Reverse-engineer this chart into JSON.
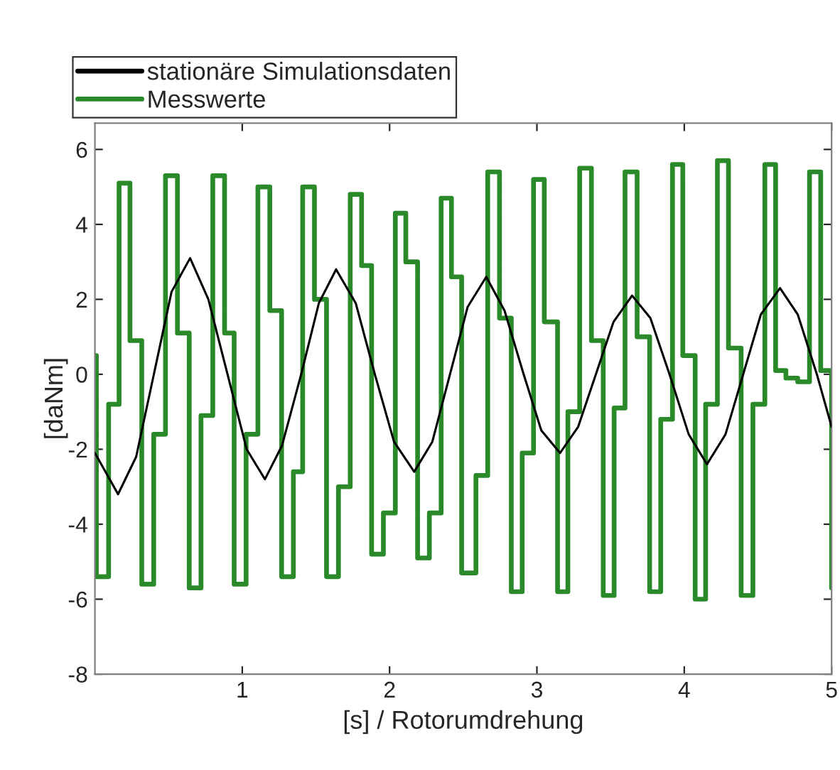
{
  "chart_data": {
    "type": "line",
    "xlabel": "[s] / Rotorumdrehung",
    "ylabel": "[daNm]",
    "xlim": [
      0,
      5
    ],
    "ylim": [
      -8,
      6.7
    ],
    "xticks": [
      1,
      2,
      3,
      4,
      5
    ],
    "yticks": [
      -8,
      -6,
      -4,
      -2,
      0,
      2,
      4,
      6
    ],
    "grid": false,
    "legend": "top left",
    "marker": "none",
    "line_style": "solid",
    "series": [
      {
        "name": "stationäre Simulationsdaten",
        "color": "#000000",
        "x": [
          0,
          0.157,
          0.28,
          0.4,
          0.52,
          0.646,
          0.77,
          0.9,
          1.03,
          1.154,
          1.27,
          1.4,
          1.52,
          1.637,
          1.77,
          1.9,
          2.03,
          2.167,
          2.29,
          2.41,
          2.53,
          2.656,
          2.78,
          2.91,
          3.03,
          3.157,
          3.28,
          3.4,
          3.52,
          3.646,
          3.77,
          3.9,
          4.03,
          4.154,
          4.28,
          4.4,
          4.52,
          4.65,
          4.77,
          4.9,
          5.0
        ],
        "values": [
          -2.1,
          -3.2,
          -2.2,
          0,
          2.2,
          3.1,
          2.0,
          0,
          -2.0,
          -2.8,
          -1.9,
          0,
          1.9,
          2.8,
          1.9,
          0,
          -1.8,
          -2.6,
          -1.8,
          0,
          1.8,
          2.6,
          1.7,
          0,
          -1.5,
          -2.1,
          -1.4,
          0,
          1.4,
          2.1,
          1.5,
          0,
          -1.6,
          -2.4,
          -1.6,
          0,
          1.6,
          2.3,
          1.6,
          0,
          -1.4
        ]
      },
      {
        "name": "Messwerte",
        "type": "step",
        "color": "#2a8a2a",
        "x": [
          0,
          0.01,
          0.093,
          0.164,
          0.238,
          0.318,
          0.399,
          0.479,
          0.56,
          0.64,
          0.72,
          0.8,
          0.88,
          0.945,
          1.026,
          1.106,
          1.187,
          1.267,
          1.347,
          1.41,
          1.49,
          1.572,
          1.653,
          1.733,
          1.81,
          1.878,
          1.958,
          2.039,
          2.11,
          2.19,
          2.27,
          2.35,
          2.42,
          2.489,
          2.586,
          2.666,
          2.746,
          2.826,
          2.9,
          2.977,
          3.05,
          3.14,
          3.21,
          3.29,
          3.37,
          3.45,
          3.524,
          3.598,
          3.68,
          3.765,
          3.84,
          3.92,
          3.99,
          4.074,
          4.145,
          4.225,
          4.3,
          4.386,
          4.466,
          4.547,
          4.62,
          4.69,
          4.77,
          4.85,
          4.926,
          5.0
        ],
        "values": [
          0.5,
          -5.4,
          -0.8,
          5.1,
          0.9,
          -5.6,
          -1.6,
          5.3,
          1.1,
          -5.7,
          -1.1,
          5.3,
          1.1,
          -5.6,
          -1.6,
          5.0,
          1.7,
          -5.4,
          -2.6,
          5.0,
          2.0,
          -5.4,
          -3.0,
          4.8,
          2.9,
          -4.8,
          -3.7,
          4.3,
          3.0,
          -4.9,
          -3.7,
          4.7,
          2.6,
          -5.3,
          -2.7,
          5.4,
          1.5,
          -5.8,
          -2.1,
          5.2,
          1.4,
          -5.8,
          -1.0,
          5.5,
          0.9,
          -5.9,
          -0.9,
          5.4,
          1.0,
          -5.8,
          -1.2,
          5.6,
          0.5,
          -6.0,
          -0.8,
          5.7,
          0.7,
          -5.9,
          -0.8,
          5.6,
          0.1,
          -0.1,
          -0.2,
          5.4,
          0.1,
          -5.7
        ]
      }
    ]
  }
}
